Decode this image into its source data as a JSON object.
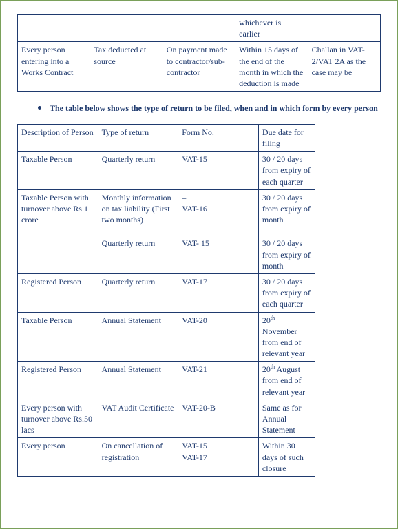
{
  "colors": {
    "text": "#1f3a6e",
    "page_border": "#7aa05a",
    "cell_border": "#1f3a6e",
    "background": "#ffffff"
  },
  "typography": {
    "base_font": "Times New Roman",
    "base_size_pt": 12,
    "bullet_weight": "bold"
  },
  "table1_styling": {
    "columns": 5,
    "col_widths_pct": [
      20,
      20,
      20,
      20,
      20
    ],
    "border_color": "#1f3a6e"
  },
  "table1": {
    "row0": {
      "c1": "",
      "c2": "",
      "c3": "",
      "c4": "whichever is earlier",
      "c5": ""
    },
    "row1": {
      "c1": "Every person entering into a Works Contract",
      "c2": "Tax deducted at source",
      "c3": "On payment made to contractor/sub-contractor",
      "c4": "Within 15 days of the end of the month in which the deduction is made",
      "c5": "Challan in VAT-2/VAT 2A as the case may be"
    }
  },
  "bullet_text": "The table below shows the type of return to be filed, when and in which form by every person",
  "table2_styling": {
    "columns": 4,
    "col_widths_pct": [
      27,
      27,
      20,
      26
    ],
    "border_color": "#1f3a6e",
    "width_pct": 82
  },
  "table2": {
    "header": {
      "c1": "Description of Person",
      "c2": "Type of return",
      "c3": "Form No.",
      "c4": "Due date for filing"
    },
    "r1": {
      "c1": "Taxable Person",
      "c2": "Quarterly return",
      "c3": "VAT-15",
      "c4": "30 / 20  days from expiry of each quarter"
    },
    "r2a": {
      "c1": "Taxable Person with turnover above Rs.1 crore",
      "c2": "Monthly information on tax liability (First two months)",
      "c3a": "–",
      "c3b": "VAT-16",
      "c4": "30 / 20 days from expiry of month"
    },
    "r2b": {
      "c2": "Quarterly return",
      "c3": "VAT- 15",
      "c4": "30 / 20 days from expiry of month"
    },
    "r3": {
      "c1": "Registered Person",
      "c2": "Quarterly return",
      "c3": "VAT-17",
      "c4": "30 / 20 days from expiry of each quarter"
    },
    "r4": {
      "c1": "Taxable Person",
      "c2": "Annual Statement",
      "c3": "VAT-20",
      "c4_prefix": "20",
      "c4_sup": "th",
      "c4_suffix": " November from end of relevant year"
    },
    "r5": {
      "c1": "Registered Person",
      "c2": "Annual Statement",
      "c3": "VAT-21",
      "c4_prefix": "20",
      "c4_sup": "th",
      "c4_suffix": " August from end of relevant year"
    },
    "r6": {
      "c1": "Every person with turnover above Rs.50 lacs",
      "c2": "VAT Audit Certificate",
      "c3": "VAT-20-B",
      "c4": "Same as for Annual Statement"
    },
    "r7": {
      "c1": "Every person",
      "c2": "On cancellation of registration",
      "c3a": "VAT-15",
      "c3b": "VAT-17",
      "c4": "Within 30 days of such closure"
    }
  }
}
